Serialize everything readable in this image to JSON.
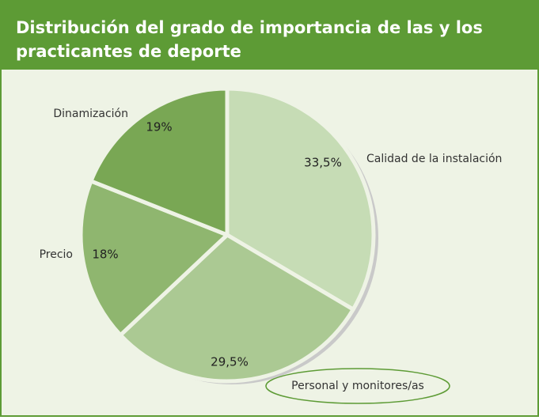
{
  "chart_data": {
    "type": "pie",
    "title": "Distribución del grado de importancia de las y los practicantes de deporte",
    "categories": [
      "Calidad de la instalación",
      "Personal y monitores/as",
      "Precio",
      "Dinamización"
    ],
    "values": [
      33.5,
      29.5,
      18,
      19
    ],
    "value_labels": [
      "33,5%",
      "29,5%",
      "18%",
      "19%"
    ],
    "colors": [
      "#c6dcb5",
      "#abc993",
      "#8fb66f",
      "#79a754"
    ]
  }
}
